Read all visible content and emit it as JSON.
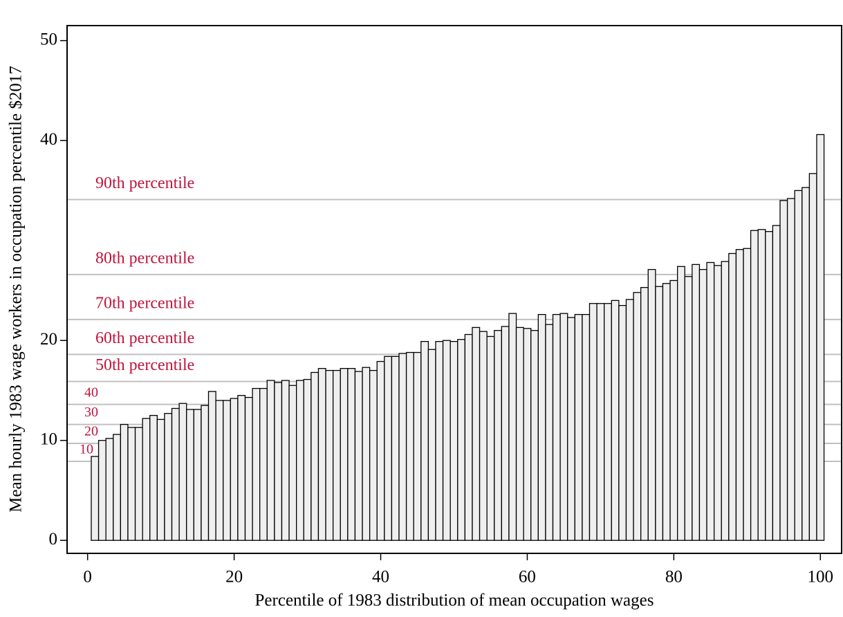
{
  "chart_data": {
    "type": "bar",
    "x_label": "Percentile of 1983 distribution of mean occupation wages",
    "y_label": "Mean hourly 1983 wage workers in occupation percentile $2017",
    "x": [
      1,
      2,
      3,
      4,
      5,
      6,
      7,
      8,
      9,
      10,
      11,
      12,
      13,
      14,
      15,
      16,
      17,
      18,
      19,
      20,
      21,
      22,
      23,
      24,
      25,
      26,
      27,
      28,
      29,
      30,
      31,
      32,
      33,
      34,
      35,
      36,
      37,
      38,
      39,
      40,
      41,
      42,
      43,
      44,
      45,
      46,
      47,
      48,
      49,
      50,
      51,
      52,
      53,
      54,
      55,
      56,
      57,
      58,
      59,
      60,
      61,
      62,
      63,
      64,
      65,
      66,
      67,
      68,
      69,
      70,
      71,
      72,
      73,
      74,
      75,
      76,
      77,
      78,
      79,
      80,
      81,
      82,
      83,
      84,
      85,
      86,
      87,
      88,
      89,
      90,
      91,
      92,
      93,
      94,
      95,
      96,
      97,
      98,
      99,
      100
    ],
    "values": [
      8.4,
      10.0,
      10.2,
      10.6,
      11.6,
      11.3,
      11.3,
      12.2,
      12.5,
      12.1,
      12.7,
      13.2,
      13.7,
      13.1,
      13.1,
      13.5,
      14.9,
      14.0,
      14.0,
      14.2,
      14.5,
      14.3,
      15.2,
      15.2,
      16.0,
      15.8,
      16.0,
      15.5,
      16.0,
      16.1,
      16.8,
      17.2,
      17.0,
      17.0,
      17.2,
      17.2,
      16.9,
      17.3,
      17.0,
      17.9,
      18.4,
      18.4,
      18.7,
      18.8,
      18.8,
      19.9,
      19.1,
      19.9,
      20.0,
      19.9,
      20.1,
      20.6,
      21.3,
      20.9,
      20.4,
      21.0,
      21.4,
      22.7,
      21.3,
      21.2,
      21.0,
      22.6,
      21.6,
      22.6,
      22.7,
      22.3,
      22.6,
      22.6,
      23.7,
      23.7,
      23.7,
      24.0,
      23.5,
      24.1,
      24.8,
      25.3,
      27.1,
      25.4,
      25.7,
      26.0,
      27.4,
      26.4,
      27.6,
      27.1,
      27.8,
      27.5,
      27.9,
      28.7,
      29.1,
      29.2,
      31.0,
      31.1,
      30.9,
      31.5,
      34.0,
      34.2,
      35.0,
      35.3,
      36.7,
      40.6
    ],
    "bar_color": "#efefef",
    "edge_color": "#000000",
    "bar_width": 1,
    "hlines": [
      {
        "value": 34.1,
        "label": "90th percentile"
      },
      {
        "value": 26.6,
        "label": "80th percentile"
      },
      {
        "value": 22.1,
        "label": "70th percentile"
      },
      {
        "value": 18.6,
        "label": "60th percentile"
      },
      {
        "value": 15.9,
        "label": "50th percentile"
      },
      {
        "value": 13.6,
        "label": "40"
      },
      {
        "value": 11.6,
        "label": "30"
      },
      {
        "value": 9.7,
        "label": "20"
      },
      {
        "value": 7.9,
        "label": "10"
      }
    ],
    "hline_color": "#c0c0c0",
    "xlim": [
      -2.8,
      102.9
    ],
    "ylim": [
      -1.3,
      51.5
    ],
    "xticks": [
      0,
      20,
      40,
      60,
      80,
      100
    ],
    "yticks": [
      0,
      10,
      20,
      40,
      50
    ]
  }
}
